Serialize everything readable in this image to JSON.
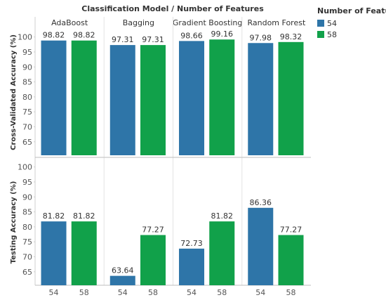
{
  "chart_data": {
    "type": "bar",
    "title": "Classification Model  /  Number of Features",
    "models": [
      "AdaBoost",
      "Bagging",
      "Gradient Boosting",
      "Random Forest"
    ],
    "feature_counts": [
      "54",
      "58"
    ],
    "colors": {
      "54": "#2e75a8",
      "58": "#11a14a"
    },
    "legend": {
      "title": "Number of Features",
      "items": [
        "54",
        "58"
      ],
      "position": "top-right"
    },
    "panels": [
      {
        "ylabel": "Cross-Validated Accuracy  (%)",
        "ylim": [
          60.5,
          102.5
        ],
        "yticks": [
          65,
          70,
          75,
          80,
          85,
          90,
          95,
          100
        ],
        "values": [
          [
            98.82,
            98.82
          ],
          [
            97.31,
            97.31
          ],
          [
            98.66,
            99.16
          ],
          [
            97.98,
            98.32
          ]
        ],
        "labels": [
          [
            "98.82",
            "98.82"
          ],
          [
            "97.31",
            "97.31"
          ],
          [
            "98.66",
            "99.16"
          ],
          [
            "97.98",
            "98.32"
          ]
        ]
      },
      {
        "ylabel": "Testing Accuracy  (%)",
        "ylim": [
          60.5,
          102.5
        ],
        "yticks": [
          65,
          70,
          75,
          80,
          85,
          90,
          95,
          100
        ],
        "values": [
          [
            81.82,
            81.82
          ],
          [
            63.64,
            77.27
          ],
          [
            72.73,
            81.82
          ],
          [
            86.36,
            77.27
          ]
        ],
        "labels": [
          [
            "81.82",
            "81.82"
          ],
          [
            "63.64",
            "77.27"
          ],
          [
            "72.73",
            "81.82"
          ],
          [
            "86.36",
            "77.27"
          ]
        ]
      }
    ],
    "grid": false
  }
}
